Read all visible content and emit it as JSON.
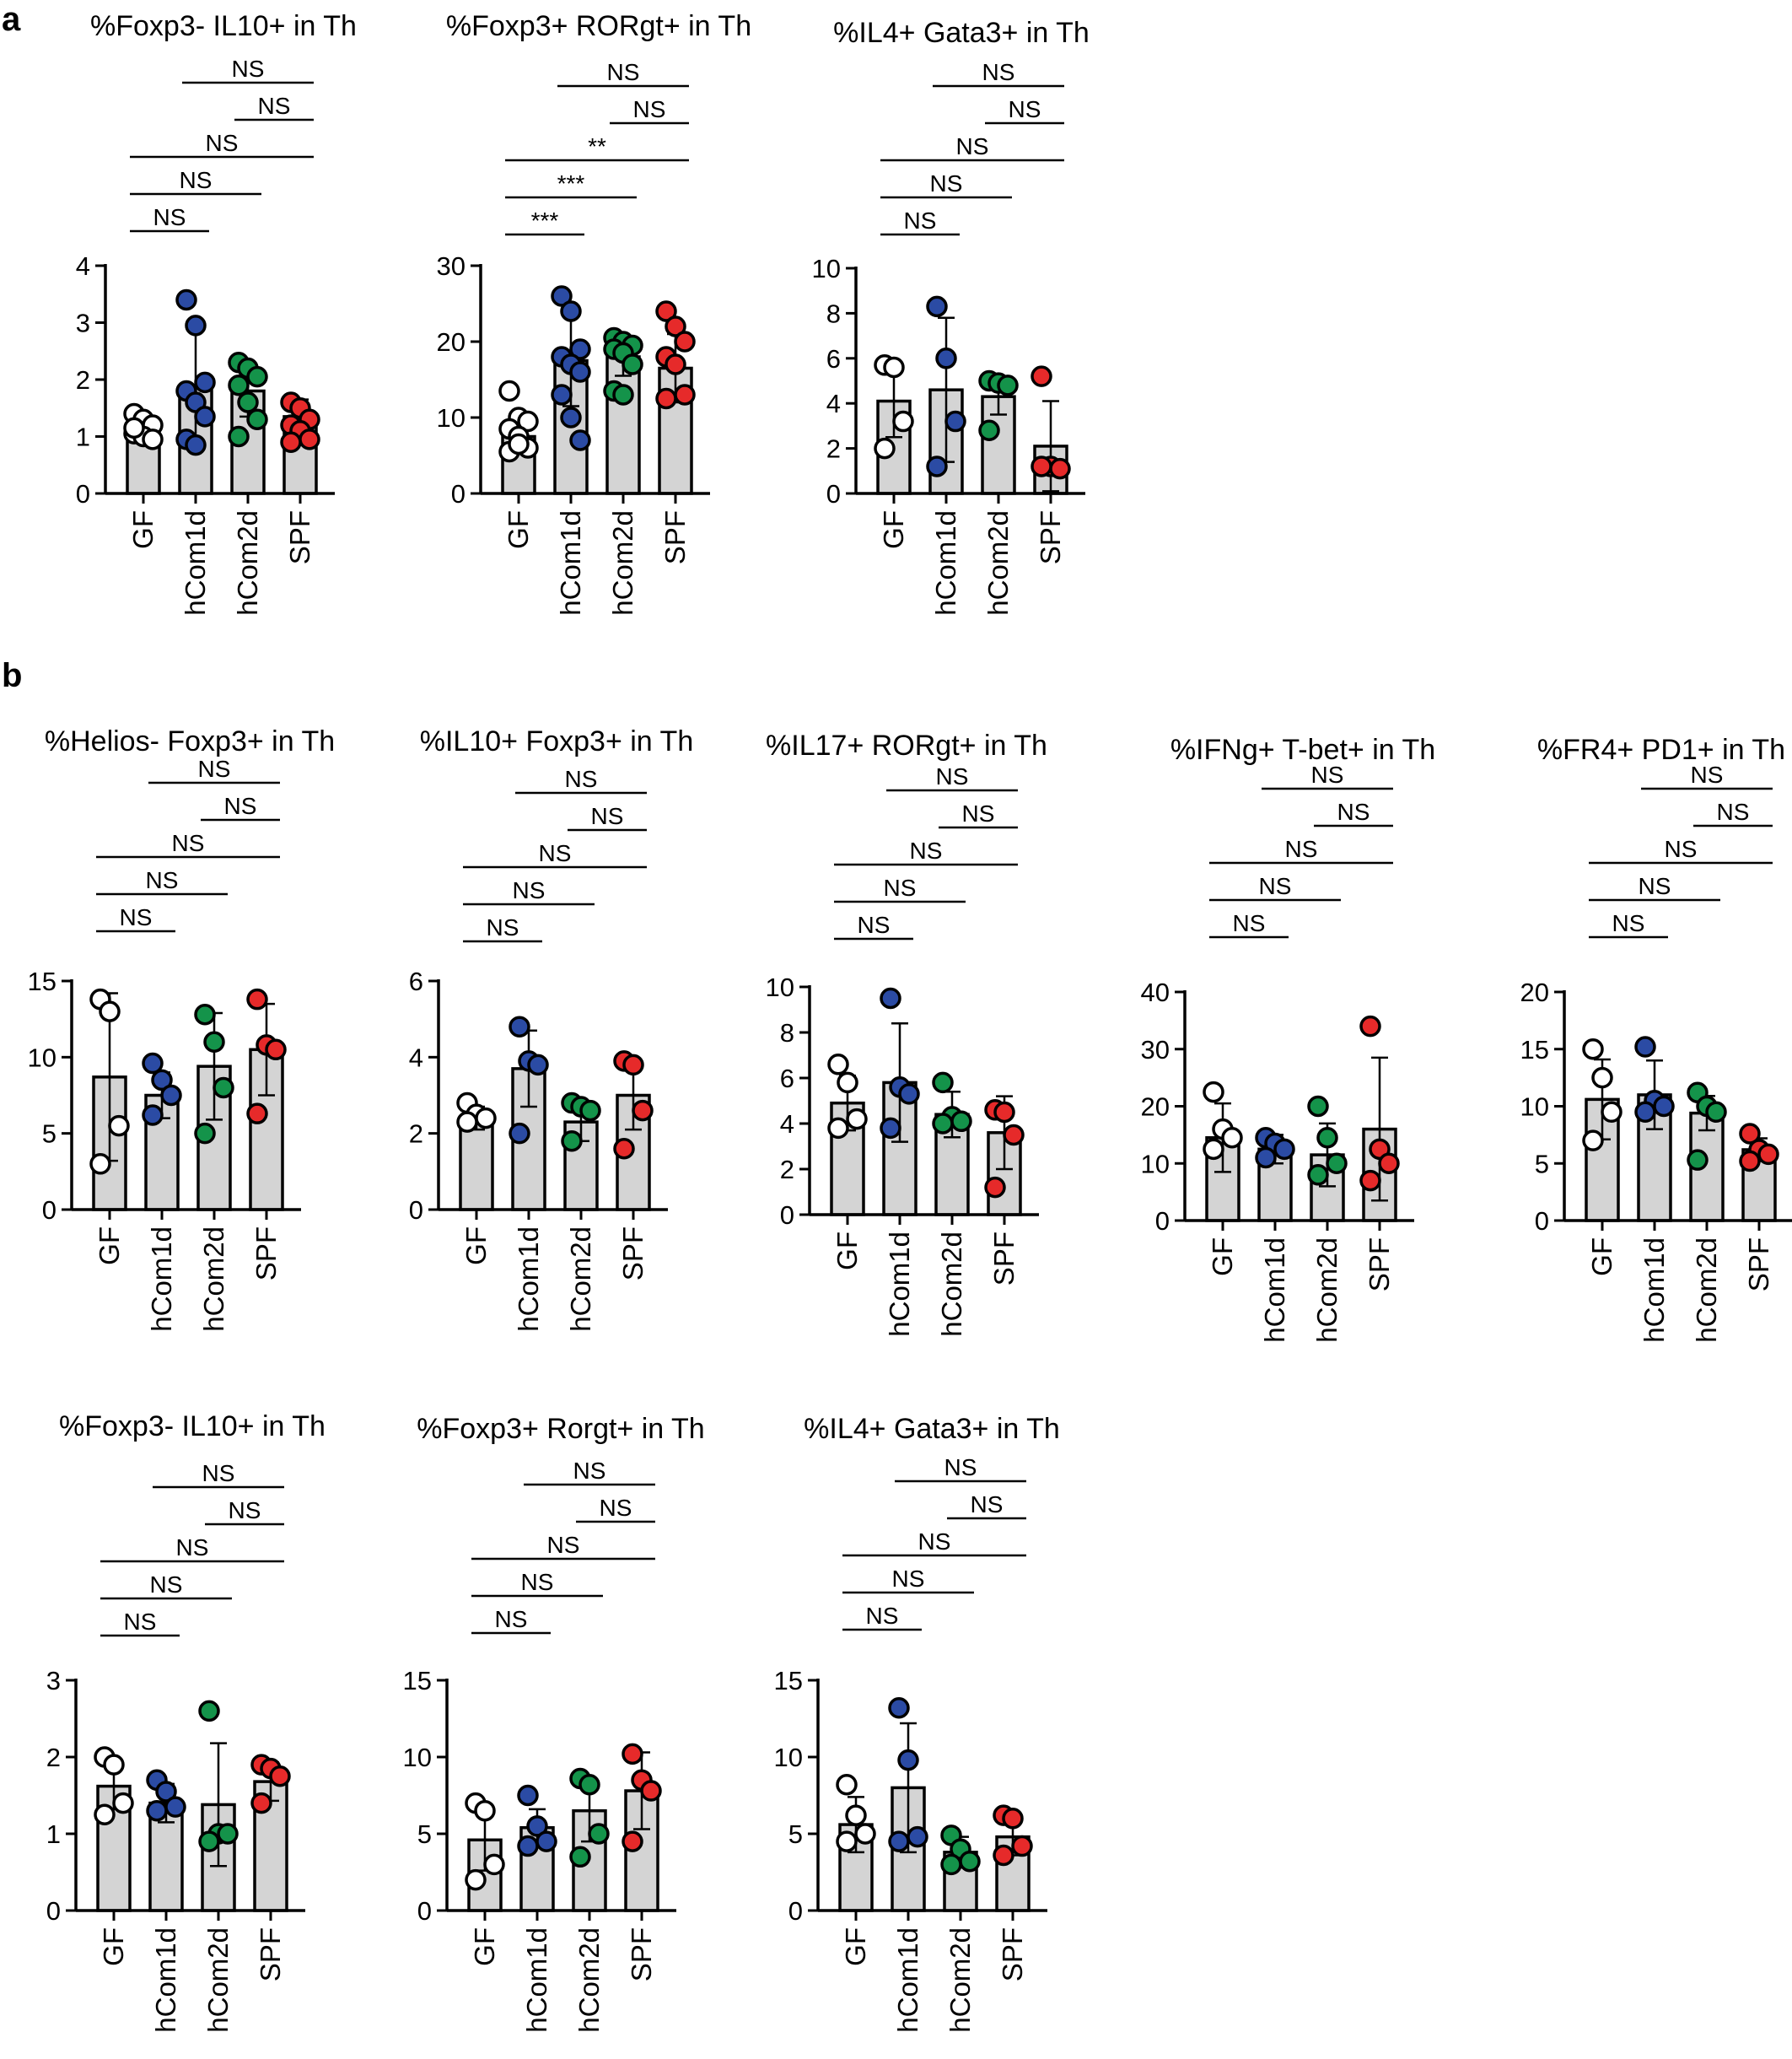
{
  "panel_labels": [
    "a",
    "b"
  ],
  "chart_data": [
    {
      "type": "bar",
      "panel": "a",
      "title": "%Foxp3- IL10+ in Th",
      "categories": [
        "GF",
        "hCom1d",
        "hCom2d",
        "SPF"
      ],
      "ylim": [
        0,
        4
      ],
      "yticks": [
        "0",
        "1",
        "2",
        "3",
        "4"
      ],
      "values": [
        1.15,
        1.85,
        1.8,
        1.35
      ],
      "errors": [
        0.25,
        1.05,
        0.45,
        0.3
      ],
      "points": [
        [
          1.4,
          1.3,
          1.2,
          1.05,
          1.0,
          0.95,
          1.15
        ],
        [
          3.4,
          2.95,
          1.95,
          1.8,
          1.6,
          1.35,
          0.95,
          0.85
        ],
        [
          2.3,
          2.2,
          2.05,
          1.9,
          1.6,
          1.3,
          1.0
        ],
        [
          1.6,
          1.5,
          1.3,
          1.2,
          1.1,
          0.95,
          0.9
        ]
      ],
      "comparisons": [
        {
          "from": "GF",
          "to": "hCom1d",
          "label": "NS"
        },
        {
          "from": "GF",
          "to": "hCom2d",
          "label": "NS"
        },
        {
          "from": "GF",
          "to": "SPF",
          "label": "NS"
        },
        {
          "from": "hCom2d",
          "to": "SPF",
          "label": "NS"
        },
        {
          "from": "hCom1d",
          "to": "SPF",
          "label": "NS"
        }
      ]
    },
    {
      "type": "bar",
      "panel": "a",
      "title": "%Foxp3+ RORgt+ in Th",
      "categories": [
        "GF",
        "hCom1d",
        "hCom2d",
        "SPF"
      ],
      "ylim": [
        0,
        30
      ],
      "yticks": [
        "0",
        "10",
        "20",
        "30"
      ],
      "values": [
        7.5,
        17.5,
        18.0,
        16.5
      ],
      "errors": [
        2.0,
        6.0,
        2.5,
        4.5
      ],
      "points": [
        [
          13.5,
          10,
          9.5,
          8.5,
          7.5,
          6,
          5.5,
          6.5
        ],
        [
          26,
          24,
          19,
          18,
          17,
          16,
          13,
          10,
          7
        ],
        [
          20.5,
          20,
          19.5,
          19,
          18.5,
          17,
          13.5,
          13
        ],
        [
          24,
          22,
          20,
          18,
          17,
          13,
          12.5
        ]
      ],
      "comparisons": [
        {
          "from": "GF",
          "to": "hCom1d",
          "label": "***"
        },
        {
          "from": "GF",
          "to": "hCom2d",
          "label": "***"
        },
        {
          "from": "GF",
          "to": "SPF",
          "label": "**"
        },
        {
          "from": "hCom2d",
          "to": "SPF",
          "label": "NS"
        },
        {
          "from": "hCom1d",
          "to": "SPF",
          "label": "NS"
        }
      ]
    },
    {
      "type": "bar",
      "panel": "a",
      "title": "%IL4+ Gata3+ in Th",
      "categories": [
        "GF",
        "hCom1d",
        "hCom2d",
        "SPF"
      ],
      "ylim": [
        0,
        10
      ],
      "yticks": [
        "0",
        "2",
        "4",
        "6",
        "8",
        "10"
      ],
      "values": [
        4.1,
        4.6,
        4.3,
        2.1
      ],
      "errors": [
        1.6,
        3.2,
        0.8,
        2.0
      ],
      "points": [
        [
          5.7,
          5.6,
          3.2,
          2.0
        ],
        [
          8.3,
          6.0,
          3.2,
          1.2
        ],
        [
          5.0,
          4.9,
          4.8,
          2.8
        ],
        [
          5.2,
          1.2,
          1.1,
          1.2
        ]
      ],
      "comparisons": [
        {
          "from": "GF",
          "to": "hCom1d",
          "label": "NS"
        },
        {
          "from": "GF",
          "to": "hCom2d",
          "label": "NS"
        },
        {
          "from": "GF",
          "to": "SPF",
          "label": "NS"
        },
        {
          "from": "hCom2d",
          "to": "SPF",
          "label": "NS"
        },
        {
          "from": "hCom1d",
          "to": "SPF",
          "label": "NS"
        }
      ]
    },
    {
      "type": "bar",
      "panel": "b",
      "title": "%Helios- Foxp3+ in Th",
      "categories": [
        "GF",
        "hCom1d",
        "hCom2d",
        "SPF"
      ],
      "ylim": [
        0,
        15
      ],
      "yticks": [
        "0",
        "5",
        "10",
        "15"
      ],
      "values": [
        8.7,
        7.5,
        9.4,
        10.5
      ],
      "errors": [
        5.5,
        1.5,
        3.5,
        3.0
      ],
      "points": [
        [
          13.8,
          13.0,
          5.5,
          3.0
        ],
        [
          9.6,
          8.5,
          7.5,
          6.2
        ],
        [
          12.8,
          11.0,
          8.0,
          5.0
        ],
        [
          13.8,
          10.8,
          10.5,
          6.3
        ]
      ],
      "comparisons": [
        {
          "from": "GF",
          "to": "hCom1d",
          "label": "NS"
        },
        {
          "from": "GF",
          "to": "hCom2d",
          "label": "NS"
        },
        {
          "from": "GF",
          "to": "SPF",
          "label": "NS"
        },
        {
          "from": "hCom2d",
          "to": "SPF",
          "label": "NS"
        },
        {
          "from": "hCom1d",
          "to": "SPF",
          "label": "NS"
        }
      ]
    },
    {
      "type": "bar",
      "panel": "b",
      "title": "%IL10+ Foxp3+ in Th",
      "categories": [
        "GF",
        "hCom1d",
        "hCom2d",
        "SPF"
      ],
      "ylim": [
        0,
        6
      ],
      "yticks": [
        "0",
        "2",
        "4",
        "6"
      ],
      "values": [
        2.4,
        3.7,
        2.3,
        3.0
      ],
      "errors": [
        0.3,
        1.0,
        0.5,
        0.9
      ],
      "points": [
        [
          2.8,
          2.5,
          2.4,
          2.3
        ],
        [
          4.8,
          3.9,
          3.8,
          2.0
        ],
        [
          2.8,
          2.7,
          2.6,
          1.8
        ],
        [
          3.9,
          3.8,
          2.6,
          1.6
        ]
      ],
      "comparisons": [
        {
          "from": "GF",
          "to": "hCom1d",
          "label": "NS"
        },
        {
          "from": "GF",
          "to": "hCom2d",
          "label": "NS"
        },
        {
          "from": "GF",
          "to": "SPF",
          "label": "NS"
        },
        {
          "from": "hCom2d",
          "to": "SPF",
          "label": "NS"
        },
        {
          "from": "hCom1d",
          "to": "SPF",
          "label": "NS"
        }
      ]
    },
    {
      "type": "bar",
      "panel": "b",
      "title": "%IL17+ RORgt+ in Th",
      "categories": [
        "GF",
        "hCom1d",
        "hCom2d",
        "SPF"
      ],
      "ylim": [
        0,
        10
      ],
      "yticks": [
        "0",
        "2",
        "4",
        "6",
        "8",
        "10"
      ],
      "values": [
        4.9,
        5.8,
        4.4,
        3.6
      ],
      "errors": [
        1.2,
        2.6,
        1.0,
        1.6
      ],
      "points": [
        [
          6.6,
          5.8,
          4.2,
          3.8
        ],
        [
          9.5,
          5.6,
          5.3,
          3.8
        ],
        [
          5.8,
          4.3,
          4.1,
          4.0
        ],
        [
          4.6,
          4.5,
          3.5,
          1.2
        ]
      ],
      "comparisons": [
        {
          "from": "GF",
          "to": "hCom1d",
          "label": "NS"
        },
        {
          "from": "GF",
          "to": "hCom2d",
          "label": "NS"
        },
        {
          "from": "GF",
          "to": "SPF",
          "label": "NS"
        },
        {
          "from": "hCom2d",
          "to": "SPF",
          "label": "NS"
        },
        {
          "from": "hCom1d",
          "to": "SPF",
          "label": "NS"
        }
      ]
    },
    {
      "type": "bar",
      "panel": "b",
      "title": "%IFNg+ T-bet+ in Th",
      "categories": [
        "GF",
        "hCom1d",
        "hCom2d",
        "SPF"
      ],
      "ylim": [
        0,
        40
      ],
      "yticks": [
        "0",
        "10",
        "20",
        "30",
        "40"
      ],
      "values": [
        14.5,
        12.5,
        11.5,
        16.0
      ],
      "errors": [
        6.0,
        2.5,
        5.5,
        12.5
      ],
      "points": [
        [
          22.5,
          16.0,
          14.5,
          12.5
        ],
        [
          14.5,
          13.5,
          12.5,
          11.0
        ],
        [
          20.0,
          14.5,
          10.0,
          8.0
        ],
        [
          34.0,
          12.5,
          10.0,
          7.0
        ]
      ],
      "comparisons": [
        {
          "from": "GF",
          "to": "hCom1d",
          "label": "NS"
        },
        {
          "from": "GF",
          "to": "hCom2d",
          "label": "NS"
        },
        {
          "from": "GF",
          "to": "SPF",
          "label": "NS"
        },
        {
          "from": "hCom2d",
          "to": "SPF",
          "label": "NS"
        },
        {
          "from": "hCom1d",
          "to": "SPF",
          "label": "NS"
        }
      ]
    },
    {
      "type": "bar",
      "panel": "b",
      "title": "%FR4+ PD1+ in Th",
      "categories": [
        "GF",
        "hCom1d",
        "hCom2d",
        "SPF"
      ],
      "ylim": [
        0,
        20
      ],
      "yticks": [
        "0",
        "5",
        "10",
        "15",
        "20"
      ],
      "values": [
        10.6,
        11.0,
        9.4,
        6.2
      ],
      "errors": [
        3.5,
        3.0,
        1.5,
        1.0
      ],
      "points": [
        [
          15.0,
          12.5,
          9.5,
          7.0
        ],
        [
          15.2,
          10.5,
          10.0,
          9.5
        ],
        [
          11.2,
          10.0,
          9.5,
          5.3
        ],
        [
          7.6,
          6.2,
          5.8,
          5.2
        ]
      ],
      "comparisons": [
        {
          "from": "GF",
          "to": "hCom1d",
          "label": "NS"
        },
        {
          "from": "GF",
          "to": "hCom2d",
          "label": "NS"
        },
        {
          "from": "GF",
          "to": "SPF",
          "label": "NS"
        },
        {
          "from": "hCom2d",
          "to": "SPF",
          "label": "NS"
        },
        {
          "from": "hCom1d",
          "to": "SPF",
          "label": "NS"
        }
      ]
    },
    {
      "type": "bar",
      "panel": "b",
      "title": "%Foxp3- IL10+ in Th",
      "categories": [
        "GF",
        "hCom1d",
        "hCom2d",
        "SPF"
      ],
      "ylim": [
        0,
        3
      ],
      "yticks": [
        "0",
        "1",
        "2",
        "3"
      ],
      "values": [
        1.62,
        1.4,
        1.38,
        1.68
      ],
      "errors": [
        0.3,
        0.25,
        0.8,
        0.25
      ],
      "points": [
        [
          2.0,
          1.9,
          1.4,
          1.25
        ],
        [
          1.7,
          1.55,
          1.35,
          1.3
        ],
        [
          2.6,
          1.0,
          1.0,
          0.9
        ],
        [
          1.9,
          1.85,
          1.75,
          1.4
        ]
      ],
      "comparisons": [
        {
          "from": "GF",
          "to": "hCom1d",
          "label": "NS"
        },
        {
          "from": "GF",
          "to": "hCom2d",
          "label": "NS"
        },
        {
          "from": "GF",
          "to": "SPF",
          "label": "NS"
        },
        {
          "from": "hCom2d",
          "to": "SPF",
          "label": "NS"
        },
        {
          "from": "hCom1d",
          "to": "SPF",
          "label": "NS"
        }
      ]
    },
    {
      "type": "bar",
      "panel": "b",
      "title": "%Foxp3+ Rorgt+  in Th",
      "categories": [
        "GF",
        "hCom1d",
        "hCom2d",
        "SPF"
      ],
      "ylim": [
        0,
        15
      ],
      "yticks": [
        "0",
        "5",
        "10",
        "15"
      ],
      "values": [
        4.6,
        5.4,
        6.5,
        7.8
      ],
      "errors": [
        2.0,
        1.2,
        2.0,
        2.5
      ],
      "points": [
        [
          7.0,
          6.5,
          3.0,
          2.0
        ],
        [
          7.5,
          5.5,
          4.5,
          4.2
        ],
        [
          8.6,
          8.2,
          5.0,
          3.5
        ],
        [
          10.2,
          8.5,
          7.8,
          4.5
        ]
      ],
      "comparisons": [
        {
          "from": "GF",
          "to": "hCom1d",
          "label": "NS"
        },
        {
          "from": "GF",
          "to": "hCom2d",
          "label": "NS"
        },
        {
          "from": "GF",
          "to": "SPF",
          "label": "NS"
        },
        {
          "from": "hCom2d",
          "to": "SPF",
          "label": "NS"
        },
        {
          "from": "hCom1d",
          "to": "SPF",
          "label": "NS"
        }
      ]
    },
    {
      "type": "bar",
      "panel": "b",
      "title": "%IL4+ Gata3+ in Th",
      "categories": [
        "GF",
        "hCom1d",
        "hCom2d",
        "SPF"
      ],
      "ylim": [
        0,
        15
      ],
      "yticks": [
        "0",
        "5",
        "10",
        "15"
      ],
      "values": [
        5.6,
        8.0,
        3.8,
        4.8
      ],
      "errors": [
        1.8,
        4.2,
        1.0,
        1.2
      ],
      "points": [
        [
          8.2,
          6.2,
          5.0,
          4.5
        ],
        [
          13.2,
          9.8,
          4.8,
          4.5
        ],
        [
          4.9,
          4.0,
          3.2,
          3.0
        ],
        [
          6.2,
          6.0,
          4.2,
          3.6
        ]
      ],
      "comparisons": [
        {
          "from": "GF",
          "to": "hCom1d",
          "label": "NS"
        },
        {
          "from": "GF",
          "to": "hCom2d",
          "label": "NS"
        },
        {
          "from": "GF",
          "to": "SPF",
          "label": "NS"
        },
        {
          "from": "hCom2d",
          "to": "SPF",
          "label": "NS"
        },
        {
          "from": "hCom1d",
          "to": "SPF",
          "label": "NS"
        }
      ]
    }
  ],
  "group_colors": {
    "GF": "#ffffff",
    "hCom1d": "#2b4ba4",
    "hCom2d": "#14934a",
    "SPF": "#e62a2a"
  },
  "bar_color": "#d4d4d4"
}
